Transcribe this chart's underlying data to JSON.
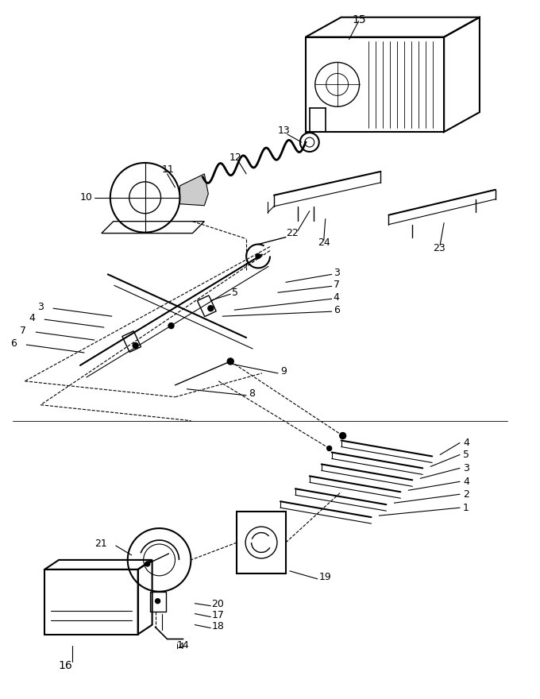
{
  "bg_color": "#ffffff",
  "line_color": "#000000",
  "fig_width": 6.8,
  "fig_height": 8.8,
  "dpi": 100
}
